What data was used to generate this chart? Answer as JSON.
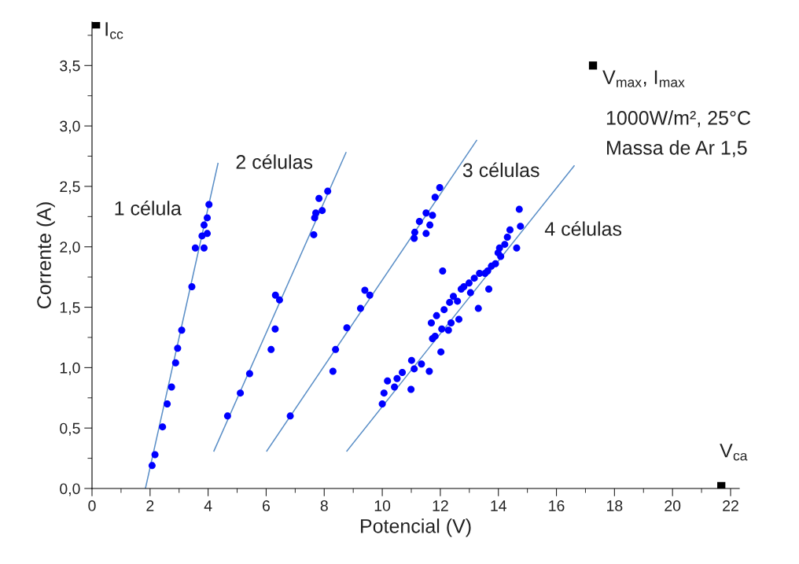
{
  "chart_data": {
    "type": "scatter",
    "xlabel": "Potencial (V)",
    "ylabel": "Corrente (A)",
    "xlim": [
      0,
      22.3
    ],
    "ylim": [
      0,
      3.86
    ],
    "xticks": [
      0,
      {
        "value": 1,
        "label": null
      },
      2,
      {
        "value": 3,
        "label": null
      },
      4,
      {
        "value": 5,
        "label": null
      },
      6,
      {
        "value": 7,
        "label": null
      },
      8,
      {
        "value": 9,
        "label": null
      },
      10,
      {
        "value": 11,
        "label": null
      },
      12,
      {
        "value": 13,
        "label": null
      },
      14,
      {
        "value": 15,
        "label": null
      },
      16,
      {
        "value": 17,
        "label": null
      },
      18,
      {
        "value": 19,
        "label": null
      },
      20,
      {
        "value": 21,
        "label": null
      },
      22
    ],
    "yticks": [
      {
        "value": 0,
        "label": "0,0"
      },
      {
        "value": 0.25,
        "label": null
      },
      {
        "value": 0.5,
        "label": "0,5"
      },
      {
        "value": 0.75,
        "label": null
      },
      {
        "value": 1,
        "label": "1,0"
      },
      {
        "value": 1.25,
        "label": null
      },
      {
        "value": 1.5,
        "label": "1,5"
      },
      {
        "value": 1.75,
        "label": null
      },
      {
        "value": 2,
        "label": "2,0"
      },
      {
        "value": 2.25,
        "label": null
      },
      {
        "value": 2.5,
        "label": "2,5"
      },
      {
        "value": 2.75,
        "label": null
      },
      {
        "value": 3,
        "label": "3,0"
      },
      {
        "value": 3.25,
        "label": null
      },
      {
        "value": 3.5,
        "label": "3,5"
      },
      {
        "value": 3.75,
        "label": null
      }
    ],
    "grid": false,
    "legend": false,
    "series": [
      {
        "name": "1 célula",
        "marker": "circle",
        "color": "#0000ff",
        "x": [
          2.07,
          2.17,
          2.43,
          2.59,
          2.74,
          2.88,
          2.95,
          3.09,
          3.44,
          3.56,
          3.86,
          3.97,
          3.86,
          3.97,
          4.03,
          3.79
        ],
        "values": [
          0.19,
          0.28,
          0.51,
          0.7,
          0.84,
          1.04,
          1.16,
          1.31,
          1.67,
          1.99,
          1.99,
          2.11,
          2.18,
          2.24,
          2.35,
          2.09
        ]
      },
      {
        "name": "2 células",
        "marker": "circle",
        "color": "#0000ff",
        "x": [
          4.67,
          5.11,
          5.43,
          6.17,
          6.31,
          6.32,
          6.46,
          7.64,
          7.67,
          7.71,
          7.93,
          7.82,
          8.12
        ],
        "values": [
          0.6,
          0.79,
          0.95,
          1.15,
          1.32,
          1.6,
          1.56,
          2.1,
          2.24,
          2.28,
          2.3,
          2.4,
          2.46
        ]
      },
      {
        "name": "3 células",
        "marker": "circle",
        "color": "#0000ff",
        "x": [
          6.83,
          8.3,
          8.39,
          8.78,
          9.25,
          9.4,
          9.57,
          11.1,
          11.12,
          11.51,
          11.64,
          11.28,
          11.51,
          11.73,
          11.82,
          11.98
        ],
        "values": [
          0.6,
          0.97,
          1.15,
          1.33,
          1.49,
          1.64,
          1.6,
          2.07,
          2.12,
          2.11,
          2.18,
          2.21,
          2.28,
          2.26,
          2.41,
          2.49
        ]
      },
      {
        "name": "4 células",
        "marker": "circle",
        "color": "#0000ff",
        "x": [
          10.0,
          10.06,
          10.18,
          10.42,
          10.51,
          10.69,
          10.99,
          11.01,
          11.1,
          11.35,
          11.62,
          11.73,
          11.82,
          12.02,
          11.69,
          11.87,
          12.05,
          12.28,
          12.37,
          12.64,
          12.13,
          12.32,
          12.45,
          12.59,
          12.72,
          12.99,
          13.04,
          13.31,
          13.35,
          13.67,
          13.63,
          13.76,
          13.9,
          13.99,
          14.04,
          14.22,
          14.31,
          14.4,
          14.63,
          14.72,
          14.76,
          12.08,
          13.54,
          14.08,
          13.17,
          12.81
        ],
        "values": [
          0.7,
          0.79,
          0.89,
          0.84,
          0.91,
          0.96,
          0.82,
          1.06,
          0.99,
          1.03,
          0.97,
          1.24,
          1.26,
          1.13,
          1.37,
          1.43,
          1.32,
          1.31,
          1.37,
          1.4,
          1.48,
          1.54,
          1.59,
          1.55,
          1.65,
          1.7,
          1.62,
          1.49,
          1.78,
          1.65,
          1.8,
          1.84,
          1.86,
          1.95,
          1.99,
          2.02,
          2.08,
          2.14,
          1.99,
          2.31,
          2.17,
          1.8,
          1.78,
          1.92,
          1.74,
          1.67
        ]
      },
      {
        "type": "line",
        "color": "#5b8fc7",
        "x": [
          1.84,
          4.34
        ],
        "values": [
          0,
          2.69
        ]
      },
      {
        "type": "line",
        "color": "#5b8fc7",
        "x": [
          4.2,
          8.75
        ],
        "values": [
          0.31,
          2.78
        ]
      },
      {
        "type": "line",
        "color": "#5b8fc7",
        "x": [
          6.02,
          13.25
        ],
        "values": [
          0.31,
          2.88
        ]
      },
      {
        "type": "line",
        "color": "#5b8fc7",
        "x": [
          8.78,
          16.61
        ],
        "values": [
          0.31,
          2.67
        ]
      },
      {
        "marker": "square",
        "color": "#000000",
        "x": [
          0.14,
          17.26,
          21.68
        ],
        "values": [
          3.84,
          3.5,
          0.02
        ],
        "value_labels": [
          "I$_{cc}$",
          "V$_{max}$, I$_{max}$",
          "V$_{ca}$"
        ]
      }
    ],
    "annotations": [
      "1000W/m², 25°C",
      "Massa de Ar 1,5"
    ]
  }
}
